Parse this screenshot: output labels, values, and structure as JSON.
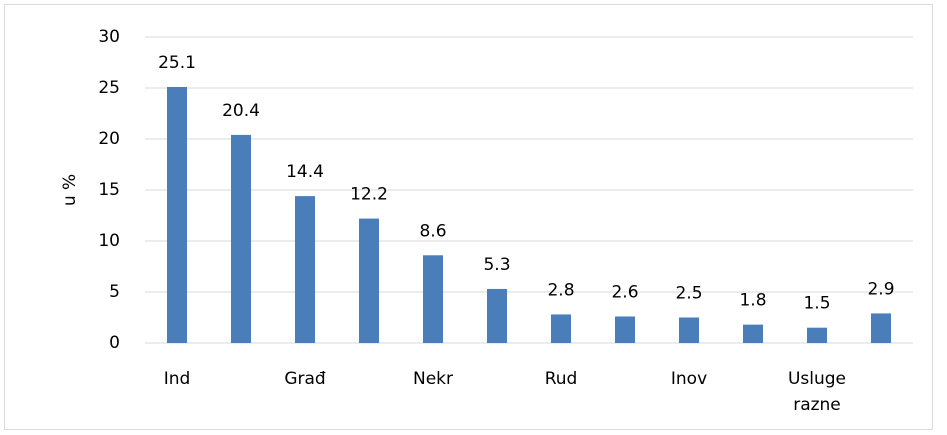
{
  "chart_data": {
    "type": "bar",
    "y_label": "u %",
    "categories": [
      "Ind",
      null,
      "Građ",
      null,
      "Nekr",
      null,
      "Rud",
      null,
      "Inov",
      null,
      "Usluge razne",
      null
    ],
    "values": [
      25.1,
      20.4,
      14.4,
      12.2,
      8.6,
      5.3,
      2.8,
      2.6,
      2.5,
      1.8,
      1.5,
      2.9
    ],
    "color": "#4a7ebb",
    "ylim": [
      0,
      30
    ],
    "yticks": [
      0,
      5,
      10,
      15,
      20,
      25,
      30
    ],
    "grid": true
  }
}
